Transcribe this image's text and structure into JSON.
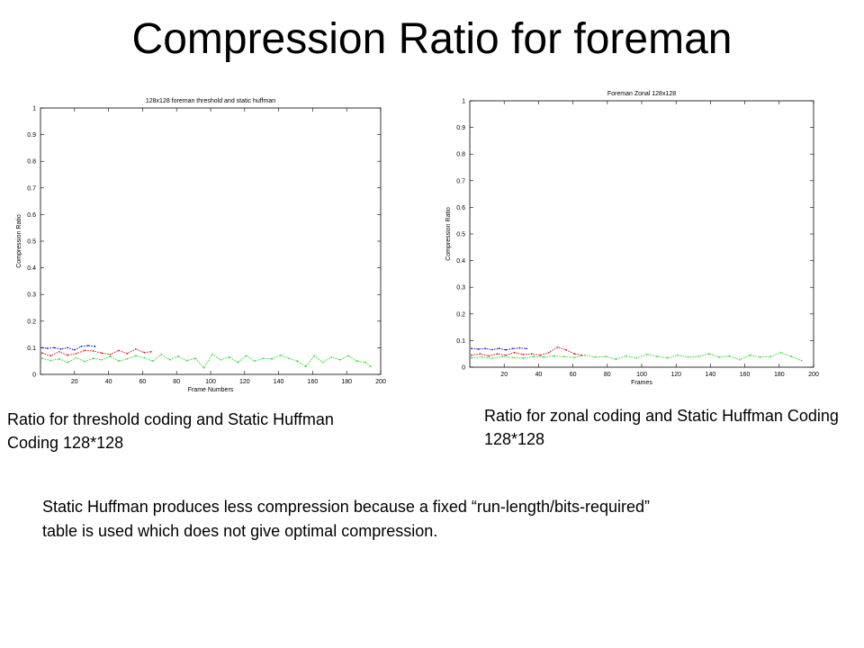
{
  "slide": {
    "title": "Compression Ratio for foreman",
    "caption_left": "Ratio for threshold coding and Static Huffman Coding 128*128",
    "caption_right": "Ratio for zonal coding and Static Huffman Coding 128*128",
    "note": "Static Huffman produces less compression because a fixed “run-length/bits-required” table is used which does not give optimal compression."
  },
  "chart_data": [
    {
      "type": "line",
      "title": "128x128 foreman threshold and static huffman",
      "xlabel": "Frame Numbers",
      "ylabel": "Compression Ratio",
      "xlim": [
        0,
        200
      ],
      "ylim": [
        0,
        1
      ],
      "xticks": [
        20,
        40,
        60,
        80,
        100,
        120,
        140,
        160,
        180,
        200
      ],
      "yticks": [
        0,
        0.1,
        0.2,
        0.3,
        0.4,
        0.5,
        0.6,
        0.7,
        0.8,
        0.9,
        1
      ],
      "grid": false,
      "legend": "none",
      "series": [
        {
          "color": "#1f1fcc",
          "x": [
            1,
            4,
            8,
            12,
            16,
            20,
            24,
            28,
            32
          ],
          "values": [
            0.1,
            0.098,
            0.1,
            0.095,
            0.1,
            0.092,
            0.105,
            0.108,
            0.105
          ]
        },
        {
          "color": "#d42020",
          "x": [
            1,
            6,
            11,
            16,
            21,
            26,
            31,
            36,
            41,
            46,
            51,
            56,
            61,
            65
          ],
          "values": [
            0.08,
            0.07,
            0.085,
            0.072,
            0.078,
            0.09,
            0.088,
            0.08,
            0.075,
            0.09,
            0.078,
            0.095,
            0.082,
            0.085
          ]
        },
        {
          "color": "#33dd33",
          "x": [
            1,
            6,
            11,
            16,
            21,
            26,
            31,
            36,
            41,
            46,
            51,
            56,
            61,
            66,
            71,
            76,
            81,
            86,
            91,
            96,
            101,
            106,
            111,
            116,
            121,
            126,
            131,
            136,
            141,
            146,
            151,
            156,
            161,
            166,
            171,
            176,
            181,
            186,
            191,
            194
          ],
          "values": [
            0.06,
            0.052,
            0.058,
            0.045,
            0.062,
            0.048,
            0.06,
            0.055,
            0.068,
            0.05,
            0.058,
            0.07,
            0.062,
            0.05,
            0.075,
            0.055,
            0.068,
            0.052,
            0.06,
            0.025,
            0.075,
            0.055,
            0.065,
            0.045,
            0.07,
            0.05,
            0.06,
            0.058,
            0.072,
            0.06,
            0.05,
            0.03,
            0.07,
            0.045,
            0.065,
            0.055,
            0.07,
            0.05,
            0.045,
            0.03
          ]
        }
      ]
    },
    {
      "type": "line",
      "title": "Foreman Zonal 128x128",
      "xlabel": "Frames",
      "ylabel": "Compression Ratio",
      "xlim": [
        0,
        200
      ],
      "ylim": [
        0,
        1
      ],
      "xticks": [
        20,
        40,
        60,
        80,
        100,
        120,
        140,
        160,
        180,
        200
      ],
      "yticks": [
        0,
        0.1,
        0.2,
        0.3,
        0.4,
        0.5,
        0.6,
        0.7,
        0.8,
        0.9,
        1
      ],
      "grid": false,
      "legend": "none",
      "series": [
        {
          "color": "#1f1fcc",
          "x": [
            1,
            5,
            9,
            13,
            17,
            21,
            25,
            29,
            33
          ],
          "values": [
            0.07,
            0.068,
            0.07,
            0.066,
            0.07,
            0.065,
            0.07,
            0.072,
            0.07
          ]
        },
        {
          "color": "#d42020",
          "x": [
            1,
            6,
            11,
            16,
            21,
            26,
            31,
            36,
            41,
            46,
            51,
            56,
            61,
            65
          ],
          "values": [
            0.045,
            0.05,
            0.042,
            0.05,
            0.045,
            0.055,
            0.048,
            0.05,
            0.045,
            0.055,
            0.075,
            0.065,
            0.05,
            0.045
          ]
        },
        {
          "color": "#33dd33",
          "x": [
            1,
            7,
            13,
            19,
            25,
            31,
            37,
            43,
            49,
            55,
            61,
            67,
            73,
            79,
            85,
            91,
            97,
            103,
            109,
            115,
            121,
            127,
            133,
            139,
            145,
            151,
            157,
            163,
            169,
            175,
            181,
            187,
            193
          ],
          "values": [
            0.035,
            0.038,
            0.033,
            0.04,
            0.036,
            0.034,
            0.04,
            0.038,
            0.042,
            0.04,
            0.036,
            0.045,
            0.038,
            0.04,
            0.03,
            0.042,
            0.035,
            0.048,
            0.04,
            0.035,
            0.045,
            0.038,
            0.04,
            0.05,
            0.038,
            0.042,
            0.028,
            0.045,
            0.038,
            0.04,
            0.055,
            0.04,
            0.025
          ]
        }
      ]
    }
  ]
}
